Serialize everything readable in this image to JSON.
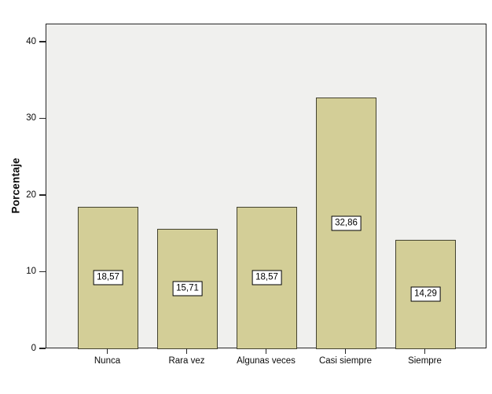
{
  "chart_data": {
    "type": "bar",
    "title": "",
    "categories": [
      "Nunca",
      "Rara vez",
      "Algunas veces",
      "Casi siempre",
      "Siempre"
    ],
    "values": [
      18.57,
      15.71,
      18.57,
      32.86,
      14.29
    ],
    "value_labels": [
      "18,57",
      "15,71",
      "18,57",
      "32,86",
      "14,29"
    ],
    "ylabel": "Porcentaje",
    "xlabel": "",
    "yticks": [
      0,
      10,
      20,
      30,
      40
    ],
    "ylim": [
      0,
      42.35
    ],
    "grid": false,
    "legend": "none",
    "value_label_position": "center-of-bar",
    "bar_fill": "#d3ce97",
    "bar_border": "#43422f",
    "plot_bg": "#f0f0ee",
    "frame_color": "#262626",
    "outer_bg": "#ffffff"
  }
}
